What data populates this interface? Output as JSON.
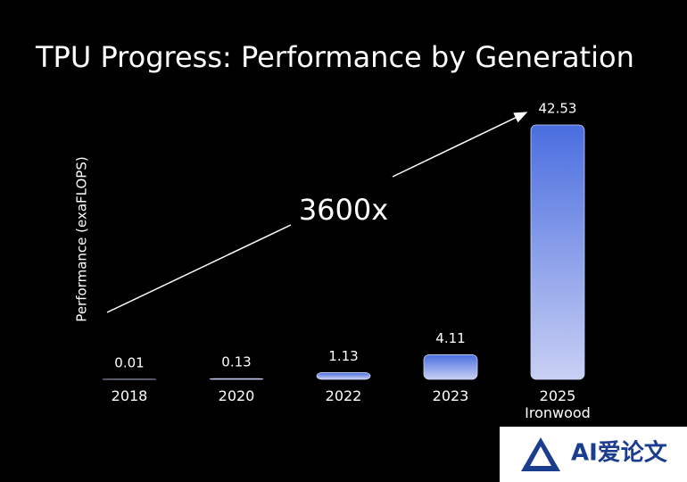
{
  "chart_data": {
    "type": "bar",
    "title": "TPU Progress: Performance by Generation",
    "y_label": "Performance (exaFLOPS)",
    "categories": [
      "2018",
      "2020",
      "2022",
      "2023",
      "2025 Ironwood"
    ],
    "values": [
      0.01,
      0.13,
      1.13,
      4.11,
      42.53
    ],
    "color_top": "#4a6ee0",
    "color_bottom": "#c9d0f4",
    "annotation": "3600x"
  },
  "watermark": "AI爱论文"
}
